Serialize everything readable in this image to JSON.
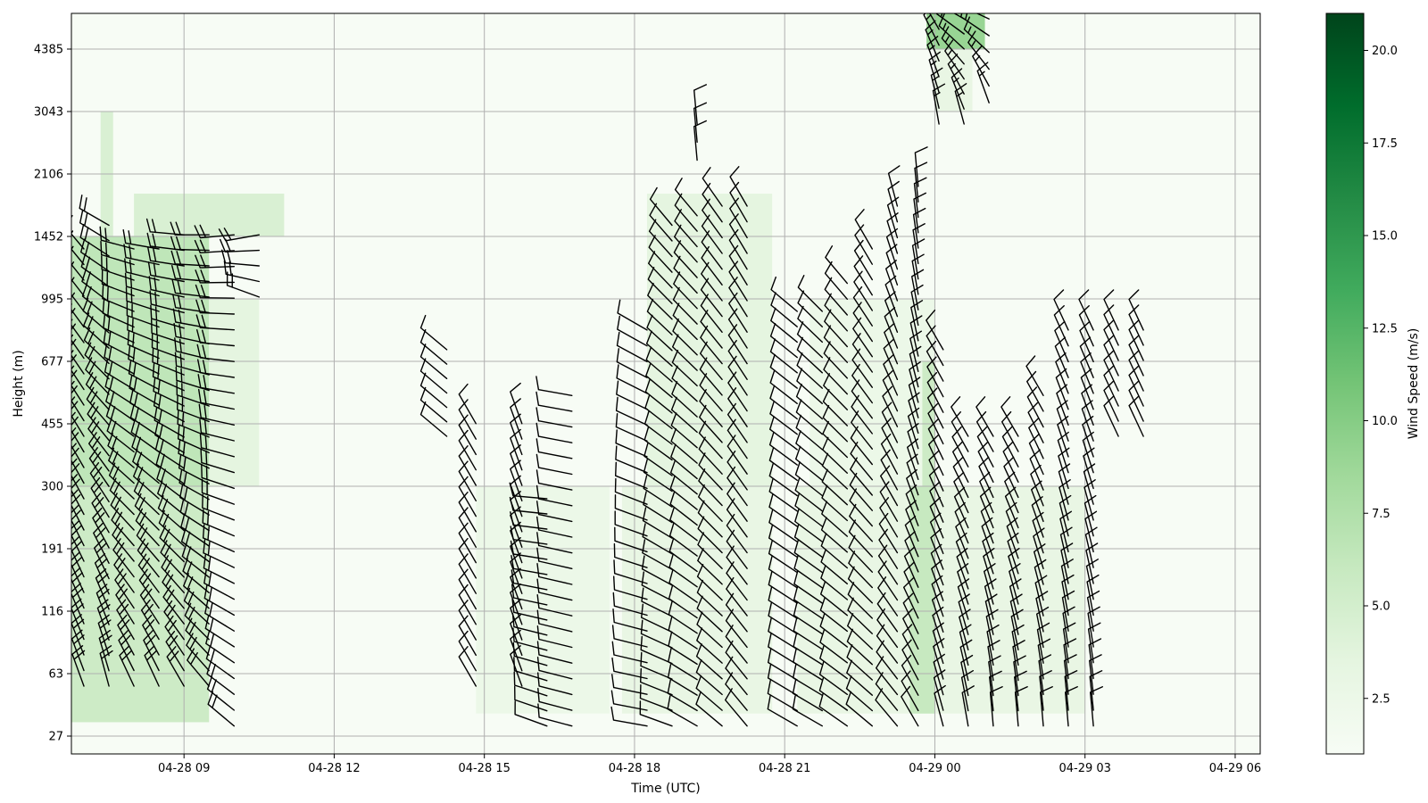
{
  "chart_data": {
    "type": "heatmap",
    "subtype": "wind-speed time-height with wind barbs",
    "xlabel": "Time (UTC)",
    "ylabel": "Height (m)",
    "xlim": [
      "2023-04-28T06:45",
      "2023-04-29T06:30"
    ],
    "x_ticks": [
      {
        "t": "2023-04-28T09:00",
        "label": "04-28 09"
      },
      {
        "t": "2023-04-28T12:00",
        "label": "04-28 12"
      },
      {
        "t": "2023-04-28T15:00",
        "label": "04-28 15"
      },
      {
        "t": "2023-04-28T18:00",
        "label": "04-28 18"
      },
      {
        "t": "2023-04-28T21:00",
        "label": "04-28 21"
      },
      {
        "t": "2023-04-29T00:00",
        "label": "04-29 00"
      },
      {
        "t": "2023-04-29T03:00",
        "label": "04-29 03"
      },
      {
        "t": "2023-04-29T06:00",
        "label": "04-29 06"
      }
    ],
    "height_levels": [
      27,
      63,
      116,
      191,
      300,
      455,
      677,
      995,
      1452,
      2106,
      3043,
      4385
    ],
    "y_tick_labels": [
      "27",
      "63",
      "116",
      "191",
      "300",
      "455",
      "677",
      "995",
      "1452",
      "2106",
      "3043",
      "4385"
    ],
    "grid": true,
    "colormap": "Greens",
    "colorbar": {
      "label": "Wind Speed (m/s)",
      "range": [
        1.0,
        21.0
      ],
      "ticks": [
        "2.5",
        "5.0",
        "7.5",
        "10.0",
        "12.5",
        "15.0",
        "17.5",
        "20.0"
      ],
      "placement": "right"
    },
    "colors": {
      "low": "#f7fcf5",
      "mid": "#74c476",
      "high": "#00441b",
      "barb": "#000000",
      "grid": "#b0b0b0"
    },
    "wind_speed_blocks": [
      {
        "t0": "2023-04-28T06:45",
        "t1": "2023-04-28T09:30",
        "z0": 35,
        "z1": 300,
        "speed": 5.5
      },
      {
        "t0": "2023-04-28T06:45",
        "t1": "2023-04-28T09:30",
        "z0": 300,
        "z1": 1452,
        "speed": 6.5
      },
      {
        "t0": "2023-04-28T07:20",
        "t1": "2023-04-28T07:35",
        "z0": 1452,
        "z1": 3043,
        "speed": 4.5
      },
      {
        "t0": "2023-04-28T08:00",
        "t1": "2023-04-28T11:00",
        "z0": 1452,
        "z1": 1900,
        "speed": 4.5
      },
      {
        "t0": "2023-04-28T09:30",
        "t1": "2023-04-28T10:30",
        "z0": 300,
        "z1": 995,
        "speed": 3.5
      },
      {
        "t0": "2023-04-28T14:50",
        "t1": "2023-04-28T17:30",
        "z0": 40,
        "z1": 300,
        "speed": 2.5
      },
      {
        "t0": "2023-04-28T17:45",
        "t1": "2023-04-28T20:45",
        "z0": 40,
        "z1": 300,
        "speed": 3.0
      },
      {
        "t0": "2023-04-28T18:15",
        "t1": "2023-04-28T20:45",
        "z0": 300,
        "z1": 1900,
        "speed": 3.5
      },
      {
        "t0": "2023-04-28T21:15",
        "t1": "2023-04-29T03:00",
        "z0": 40,
        "z1": 300,
        "speed": 3.0
      },
      {
        "t0": "2023-04-28T23:30",
        "t1": "2023-04-29T00:00",
        "z0": 40,
        "z1": 300,
        "speed": 6.0
      },
      {
        "t0": "2023-04-28T21:30",
        "t1": "2023-04-29T00:00",
        "z0": 300,
        "z1": 995,
        "speed": 2.5
      },
      {
        "t0": "2023-04-28T23:45",
        "t1": "2023-04-29T00:00",
        "z0": 300,
        "z1": 677,
        "speed": 5.5
      },
      {
        "t0": "2023-04-28T23:50",
        "t1": "2023-04-29T01:00",
        "z0": 4385,
        "z1": 5300,
        "speed": 9.0
      },
      {
        "t0": "2023-04-29T00:00",
        "t1": "2023-04-29T00:45",
        "z0": 3043,
        "z1": 4385,
        "speed": 3.0
      }
    ],
    "wind_barb_columns": [
      {
        "t": "2023-04-28T07:00",
        "z0": 63,
        "z1": 1452,
        "dir_low": 340,
        "dir_high": 320,
        "speed": 20
      },
      {
        "t": "2023-04-28T07:30",
        "z0": 63,
        "z1": 1700,
        "dir_low": 345,
        "dir_high": 300,
        "speed": 20
      },
      {
        "t": "2023-04-28T08:00",
        "z0": 63,
        "z1": 1452,
        "dir_low": 335,
        "dir_high": 285,
        "speed": 20
      },
      {
        "t": "2023-04-28T08:30",
        "z0": 63,
        "z1": 1452,
        "dir_low": 335,
        "dir_high": 280,
        "speed": 20
      },
      {
        "t": "2023-04-28T09:00",
        "z0": 63,
        "z1": 1600,
        "dir_low": 330,
        "dir_high": 275,
        "speed": 20
      },
      {
        "t": "2023-04-28T09:30",
        "z0": 63,
        "z1": 1600,
        "dir_low": 320,
        "dir_high": 270,
        "speed": 20
      },
      {
        "t": "2023-04-28T10:00",
        "z0": 40,
        "z1": 1600,
        "dir_low": 310,
        "dir_high": 265,
        "speed": 20
      },
      {
        "t": "2023-04-28T10:30",
        "z0": 1100,
        "z1": 1600,
        "dir_low": 290,
        "dir_high": 260,
        "speed": 20
      },
      {
        "t": "2023-04-28T14:15",
        "z0": 455,
        "z1": 800,
        "dir_low": 310,
        "dir_high": 310,
        "speed": 10
      },
      {
        "t": "2023-04-28T14:50",
        "z0": 63,
        "z1": 500,
        "dir_low": 330,
        "dir_high": 330,
        "speed": 10
      },
      {
        "t": "2023-04-28T15:45",
        "z0": 63,
        "z1": 500,
        "dir_low": 340,
        "dir_high": 340,
        "speed": 10
      },
      {
        "t": "2023-04-28T16:15",
        "z0": 40,
        "z1": 300,
        "dir_low": 290,
        "dir_high": 275,
        "speed": 10
      },
      {
        "t": "2023-04-28T16:45",
        "z0": 40,
        "z1": 600,
        "dir_low": 285,
        "dir_high": 280,
        "speed": 10
      },
      {
        "t": "2023-04-28T18:15",
        "z0": 40,
        "z1": 900,
        "dir_low": 280,
        "dir_high": 300,
        "speed": 10
      },
      {
        "t": "2023-04-28T18:45",
        "z0": 40,
        "z1": 1700,
        "dir_low": 290,
        "dir_high": 320,
        "speed": 10
      },
      {
        "t": "2023-04-28T19:15",
        "z0": 40,
        "z1": 1800,
        "dir_low": 300,
        "dir_high": 320,
        "speed": 10
      },
      {
        "t": "2023-04-28T19:45",
        "z0": 40,
        "z1": 1900,
        "dir_low": 310,
        "dir_high": 325,
        "speed": 10
      },
      {
        "t": "2023-04-28T20:15",
        "z0": 40,
        "z1": 1900,
        "dir_low": 320,
        "dir_high": 330,
        "speed": 10
      },
      {
        "t": "2023-04-28T21:15",
        "z0": 40,
        "z1": 995,
        "dir_low": 300,
        "dir_high": 310,
        "speed": 10
      },
      {
        "t": "2023-04-28T21:45",
        "z0": 40,
        "z1": 995,
        "dir_low": 300,
        "dir_high": 315,
        "speed": 10
      },
      {
        "t": "2023-04-28T22:15",
        "z0": 40,
        "z1": 1200,
        "dir_low": 305,
        "dir_high": 320,
        "speed": 10
      },
      {
        "t": "2023-04-28T22:45",
        "z0": 40,
        "z1": 1452,
        "dir_low": 310,
        "dir_high": 330,
        "speed": 10
      },
      {
        "t": "2023-04-28T23:15",
        "z0": 40,
        "z1": 1900,
        "dir_low": 320,
        "dir_high": 345,
        "speed": 10
      },
      {
        "t": "2023-04-28T23:40",
        "z0": 40,
        "z1": 2106,
        "dir_low": 330,
        "dir_high": 355,
        "speed": 10
      },
      {
        "t": "2023-04-29T00:10",
        "z0": 40,
        "z1": 800,
        "dir_low": 345,
        "dir_high": 330,
        "speed": 10
      },
      {
        "t": "2023-04-29T00:40",
        "z0": 40,
        "z1": 455,
        "dir_low": 350,
        "dir_high": 330,
        "speed": 10
      },
      {
        "t": "2023-04-29T01:10",
        "z0": 40,
        "z1": 455,
        "dir_low": 355,
        "dir_high": 330,
        "speed": 10
      },
      {
        "t": "2023-04-29T01:40",
        "z0": 40,
        "z1": 455,
        "dir_low": 355,
        "dir_high": 330,
        "speed": 10
      },
      {
        "t": "2023-04-29T02:10",
        "z0": 40,
        "z1": 600,
        "dir_low": 355,
        "dir_high": 330,
        "speed": 10
      },
      {
        "t": "2023-04-29T02:40",
        "z0": 40,
        "z1": 900,
        "dir_low": 355,
        "dir_high": 335,
        "speed": 10
      },
      {
        "t": "2023-04-29T03:10",
        "z0": 40,
        "z1": 900,
        "dir_low": 355,
        "dir_high": 335,
        "speed": 10
      },
      {
        "t": "2023-04-29T03:40",
        "z0": 455,
        "z1": 900,
        "dir_low": 335,
        "dir_high": 335,
        "speed": 10
      },
      {
        "t": "2023-04-29T04:10",
        "z0": 455,
        "z1": 900,
        "dir_low": 335,
        "dir_high": 335,
        "speed": 10
      },
      {
        "t": "2023-04-28T19:15",
        "z0": 2500,
        "z1": 3043,
        "dir_low": 355,
        "dir_high": 355,
        "speed": 10
      },
      {
        "t": "2023-04-29T00:05",
        "z0": 3043,
        "z1": 5000,
        "dir_low": 350,
        "dir_high": 330,
        "speed": 15
      },
      {
        "t": "2023-04-29T00:35",
        "z0": 3043,
        "z1": 5200,
        "dir_low": 345,
        "dir_high": 300,
        "speed": 15
      },
      {
        "t": "2023-04-29T01:05",
        "z0": 3500,
        "z1": 5200,
        "dir_low": 340,
        "dir_high": 295,
        "speed": 15
      }
    ]
  }
}
